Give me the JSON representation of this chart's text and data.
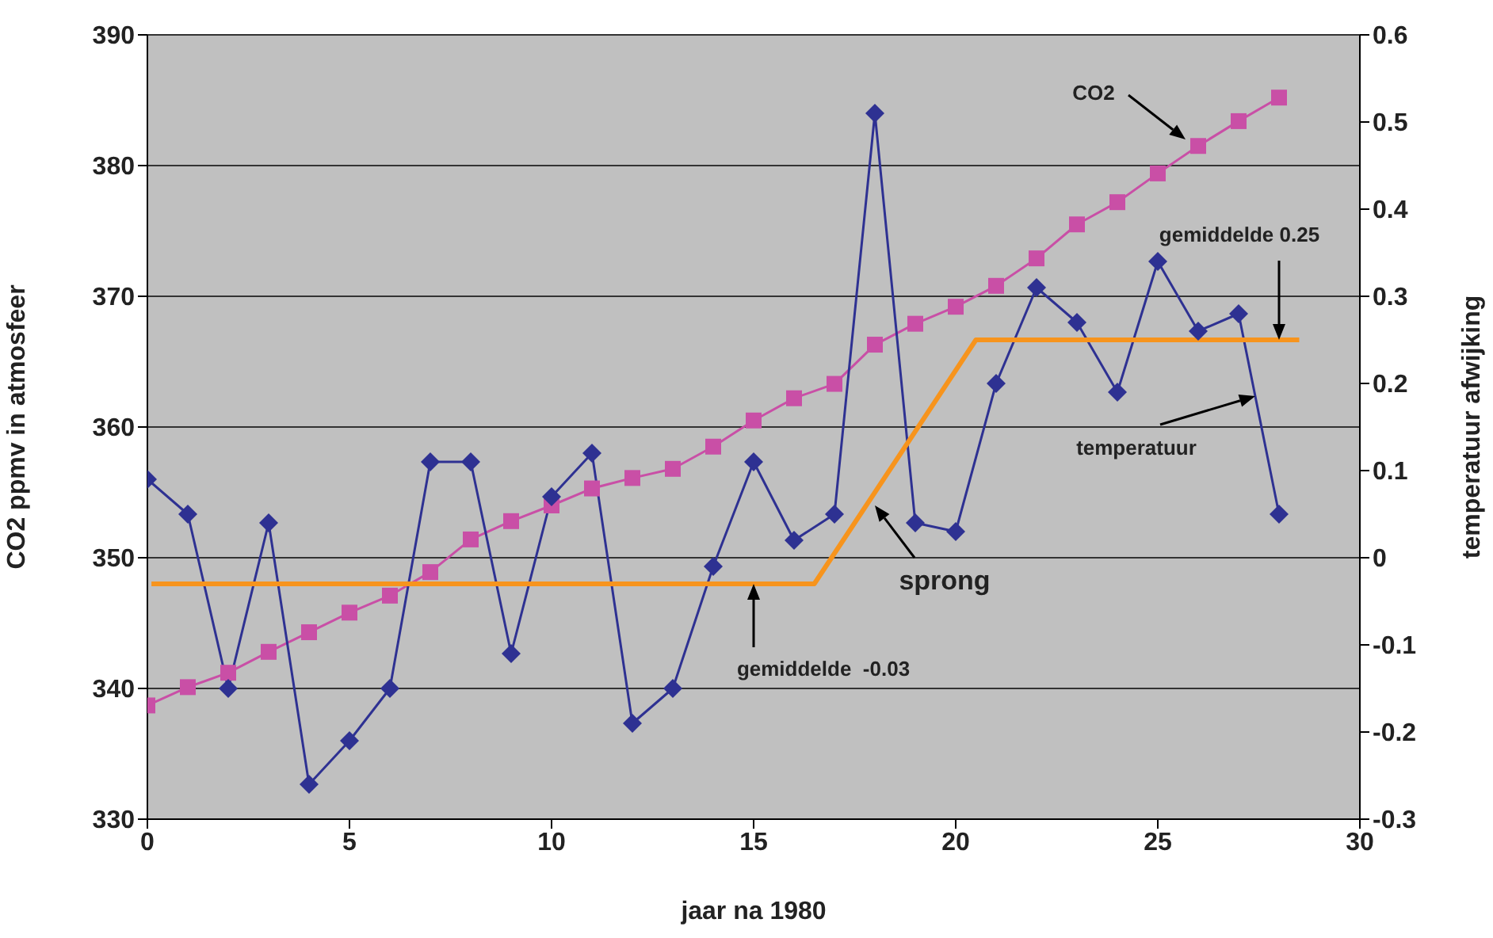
{
  "chart_data": {
    "type": "line",
    "xlabel": "jaar na 1980",
    "ylabel": "CO2 ppmv in atmosfeer",
    "y2label": "temperatuur afwijking",
    "x": [
      0,
      1,
      2,
      3,
      4,
      5,
      6,
      7,
      8,
      9,
      10,
      11,
      12,
      13,
      14,
      15,
      16,
      17,
      18,
      19,
      20,
      21,
      22,
      23,
      24,
      25,
      26,
      27,
      28
    ],
    "series": [
      {
        "name": "CO2",
        "color": "#c94fa6",
        "marker": "square",
        "values": [
          338.7,
          340.1,
          341.2,
          342.8,
          344.3,
          345.8,
          347.1,
          348.9,
          351.4,
          352.8,
          354.0,
          355.3,
          356.1,
          356.8,
          358.5,
          360.5,
          362.2,
          363.3,
          366.3,
          367.9,
          369.2,
          370.8,
          372.9,
          375.5,
          377.2,
          379.4,
          381.5,
          383.4,
          385.2
        ]
      },
      {
        "name": "temperatuur",
        "color": "#2e3192",
        "marker": "diamond",
        "axis": "y2",
        "values": [
          0.09,
          0.05,
          -0.15,
          0.04,
          -0.26,
          -0.21,
          -0.15,
          0.11,
          0.11,
          -0.11,
          0.07,
          0.12,
          -0.19,
          -0.15,
          -0.01,
          0.11,
          0.02,
          0.05,
          0.51,
          0.04,
          0.03,
          0.2,
          0.31,
          0.27,
          0.19,
          0.34,
          0.26,
          0.28,
          0.05
        ]
      },
      {
        "color": "#f7941d",
        "marker": "none",
        "axis": "y2",
        "x": [
          0.1,
          16.5,
          20.5,
          28.5
        ],
        "values": [
          -0.03,
          -0.03,
          0.25,
          0.25
        ]
      }
    ],
    "xlim": [
      0,
      30
    ],
    "xticks": [
      0,
      5,
      10,
      15,
      20,
      25,
      30
    ],
    "ylim": [
      330,
      390
    ],
    "yticks": [
      330,
      340,
      350,
      360,
      370,
      380,
      390
    ],
    "y2lim": [
      -0.3,
      0.6
    ],
    "y2ticks": [
      -0.3,
      -0.2,
      -0.1,
      0,
      0.1,
      0.2,
      0.3,
      0.4,
      0.5,
      0.6
    ],
    "grid": "y",
    "legend": false,
    "annotations": [
      "gemiddelde 0.25",
      "gemiddelde  -0.03",
      {
        "text": "sprong",
        "x": 18,
        "y": 354
      }
    ]
  }
}
